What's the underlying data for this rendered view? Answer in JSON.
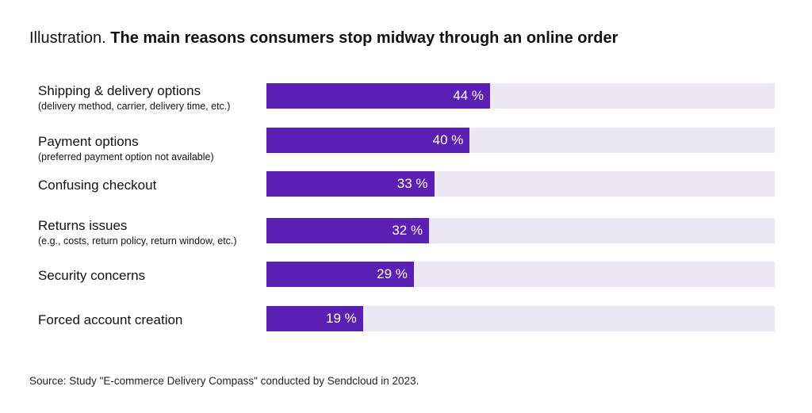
{
  "header": {
    "prefix": "Illustration.",
    "title": "The main reasons consumers stop midway through an online order"
  },
  "chart_data": {
    "type": "bar",
    "orientation": "horizontal",
    "title": "The main reasons consumers stop midway through an online order",
    "xlim": [
      0,
      100
    ],
    "grid": false,
    "categories": [
      "Shipping & delivery options",
      "Payment options",
      "Confusing checkout",
      "Returns issues",
      "Security concerns",
      "Forced account creation"
    ],
    "subtitles": [
      "(delivery method, carrier, delivery time, etc.)",
      "(preferred payment option not available)",
      "",
      "(e.g., costs, return policy, return window, etc.)",
      "",
      ""
    ],
    "values": [
      44,
      40,
      33,
      32,
      29,
      19
    ],
    "value_labels": [
      "44 %",
      "40 %",
      "33 %",
      "32 %",
      "29 %",
      "19 %"
    ],
    "colors": {
      "bar": "#5c1fb3",
      "track": "#ece6f5"
    }
  },
  "footer": {
    "source": "Source: Study \"E-commerce Delivery Compass\" conducted by Sendcloud in 2023."
  }
}
